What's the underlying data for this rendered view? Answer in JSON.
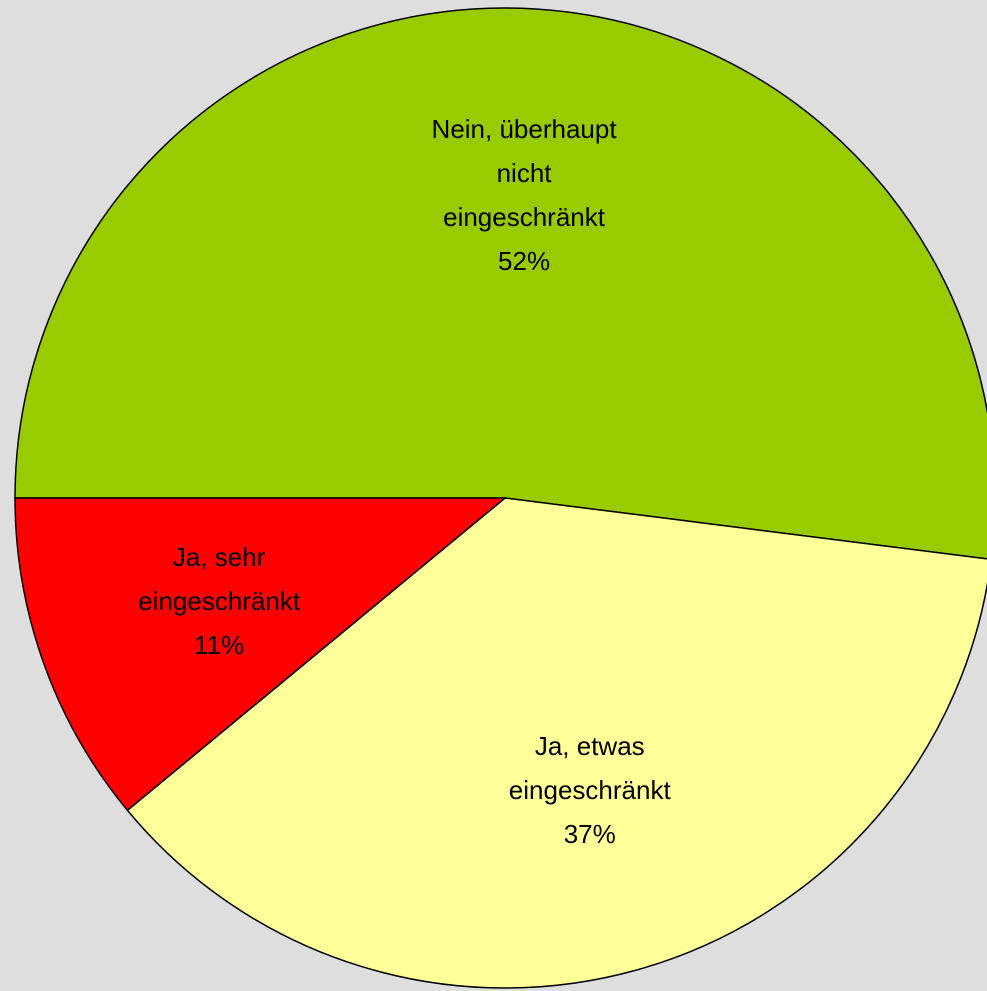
{
  "chart_data": {
    "type": "pie",
    "categories": [
      "Nein, überhaupt\nnicht\neingeschränkt",
      "Ja, etwas\neingeschränkt",
      "Ja, sehr\neingeschränkt"
    ],
    "values": [
      52,
      37,
      11
    ],
    "value_labels": [
      "52%",
      "37%",
      "11%"
    ],
    "colors": [
      "#99cc00",
      "#ffff99",
      "#ff0000"
    ]
  }
}
